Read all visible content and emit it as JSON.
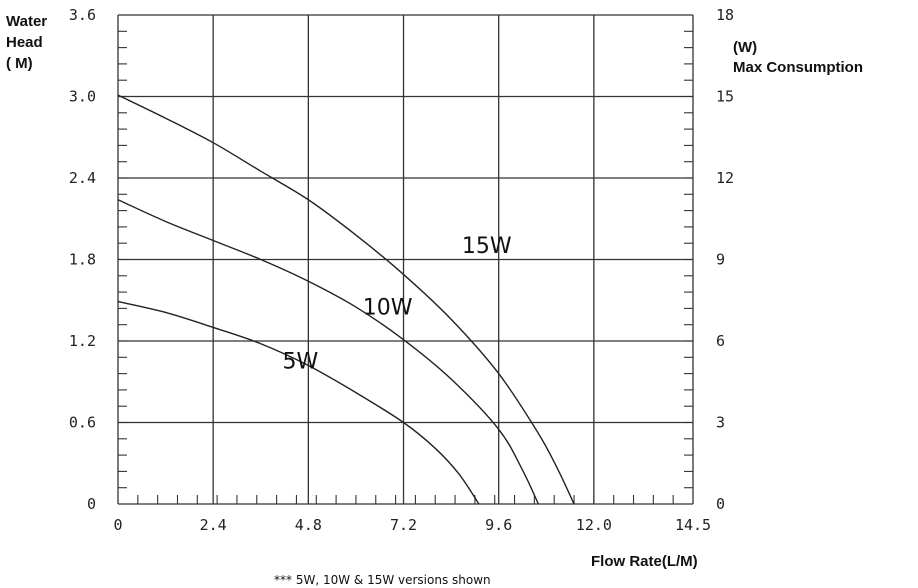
{
  "chart_data": {
    "type": "line",
    "xlabel": "Flow Rate(L/M)",
    "ylabel_line1": "Water",
    "ylabel_line2": "Head",
    "ylabel_line3": "( M)",
    "y2label_line1": "(W)",
    "y2label_line2": "Max  Consumption",
    "footnote": "*** 5W, 10W & 15W versions shown",
    "xlim": [
      0,
      14.5
    ],
    "ylim": [
      0,
      3.6
    ],
    "y2lim": [
      0,
      18
    ],
    "x_ticks": [
      {
        "value": 0,
        "label": "0"
      },
      {
        "value": 2.4,
        "label": "2.4"
      },
      {
        "value": 4.8,
        "label": "4.8"
      },
      {
        "value": 7.2,
        "label": "7.2"
      },
      {
        "value": 9.6,
        "label": "9.6"
      },
      {
        "value": 12.0,
        "label": "12.0"
      },
      {
        "value": 14.5,
        "label": "14.5"
      }
    ],
    "y_ticks": [
      {
        "value": 0,
        "label": "0"
      },
      {
        "value": 0.6,
        "label": "0.6"
      },
      {
        "value": 1.2,
        "label": "1.2"
      },
      {
        "value": 1.8,
        "label": "1.8"
      },
      {
        "value": 2.4,
        "label": "2.4"
      },
      {
        "value": 3.0,
        "label": "3.0"
      },
      {
        "value": 3.6,
        "label": "3.6"
      }
    ],
    "y2_ticks": [
      {
        "value": 0,
        "label": "0"
      },
      {
        "value": 3,
        "label": "3"
      },
      {
        "value": 6,
        "label": "6"
      },
      {
        "value": 9,
        "label": "9"
      },
      {
        "value": 12,
        "label": "12"
      },
      {
        "value": 15,
        "label": "15"
      },
      {
        "value": 18,
        "label": "18"
      }
    ],
    "grid": true,
    "series": [
      {
        "name": "5W",
        "points": [
          [
            0,
            1.49
          ],
          [
            1.2,
            1.41
          ],
          [
            2.4,
            1.3
          ],
          [
            3.6,
            1.18
          ],
          [
            4.8,
            1.02
          ],
          [
            6.0,
            0.82
          ],
          [
            7.2,
            0.6
          ],
          [
            8.0,
            0.41
          ],
          [
            8.6,
            0.22
          ],
          [
            9.1,
            0
          ]
        ]
      },
      {
        "name": "10W",
        "points": [
          [
            0,
            2.24
          ],
          [
            1.2,
            2.08
          ],
          [
            2.4,
            1.94
          ],
          [
            3.6,
            1.8
          ],
          [
            4.8,
            1.64
          ],
          [
            6.0,
            1.45
          ],
          [
            7.2,
            1.21
          ],
          [
            8.4,
            0.92
          ],
          [
            9.6,
            0.55
          ],
          [
            10.2,
            0.25
          ],
          [
            10.6,
            0
          ]
        ]
      },
      {
        "name": "15W",
        "points": [
          [
            0,
            3.01
          ],
          [
            1.2,
            2.84
          ],
          [
            2.4,
            2.66
          ],
          [
            3.6,
            2.45
          ],
          [
            4.8,
            2.24
          ],
          [
            6.0,
            1.98
          ],
          [
            7.2,
            1.69
          ],
          [
            8.4,
            1.36
          ],
          [
            9.6,
            0.96
          ],
          [
            10.6,
            0.52
          ],
          [
            11.1,
            0.25
          ],
          [
            11.5,
            0
          ]
        ]
      }
    ]
  }
}
